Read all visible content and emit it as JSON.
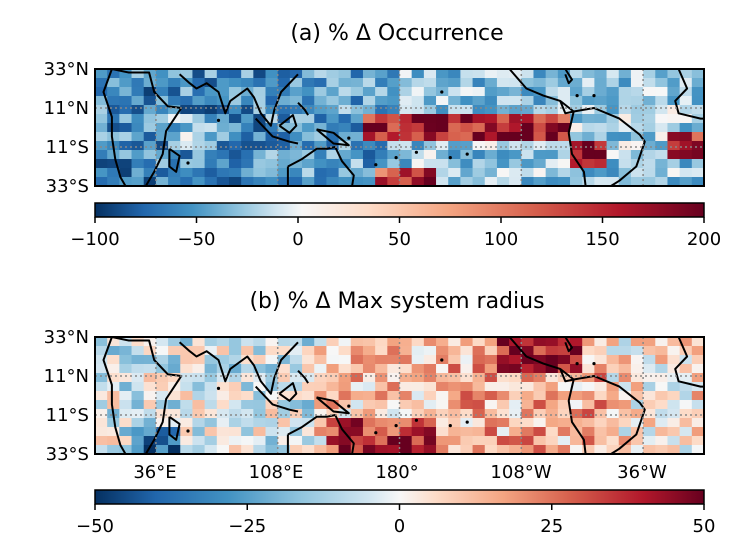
{
  "figure": {
    "panels": [
      {
        "title": "(a) % Δ Occurrence",
        "lat_ticks": [
          "33°N",
          "11°N",
          "11°S",
          "33°S"
        ],
        "lon_ticks": [],
        "colorbar": {
          "ticks": [
            "−100",
            "−50",
            "0",
            "50",
            "100",
            "150",
            "200"
          ]
        }
      },
      {
        "title": "(b) % Δ Max system radius",
        "lat_ticks": [
          "33°N",
          "11°N",
          "11°S",
          "33°S"
        ],
        "lon_ticks": [
          "36°E",
          "108°E",
          "180°",
          "108°W",
          "36°W"
        ],
        "colorbar": {
          "ticks": [
            "−50",
            "−25",
            "0",
            "25",
            "50"
          ]
        }
      }
    ]
  },
  "chart_data": [
    {
      "type": "heatmap",
      "title": "(a) % Δ Occurrence",
      "colormap": "RdBu_r",
      "vmin": -100,
      "vmax": 200,
      "xlim_lon": [
        0,
        360
      ],
      "ylim_lat": [
        -33,
        33
      ],
      "grid": true,
      "regions": [
        {
          "lon": [
            0,
            100
          ],
          "lat": [
            -33,
            33
          ],
          "value": -40
        },
        {
          "lon": [
            100,
            180
          ],
          "lat": [
            -33,
            33
          ],
          "value": -25
        },
        {
          "lon": [
            180,
            290
          ],
          "lat": [
            -33,
            33
          ],
          "value": 5
        },
        {
          "lon": [
            290,
            360
          ],
          "lat": [
            -33,
            33
          ],
          "value": 5
        },
        {
          "lon": [
            155,
            280
          ],
          "lat": [
            -6,
            8
          ],
          "value": 170
        },
        {
          "lon": [
            40,
            70
          ],
          "lat": [
            -12,
            10
          ],
          "value": 0
        },
        {
          "lon": [
            165,
            205
          ],
          "lat": [
            -33,
            -22
          ],
          "value": 160
        },
        {
          "lon": [
            280,
            300
          ],
          "lat": [
            -25,
            -10
          ],
          "value": 190
        },
        {
          "lon": [
            340,
            360
          ],
          "lat": [
            -20,
            -5
          ],
          "value": 170
        }
      ]
    },
    {
      "type": "heatmap",
      "title": "(b) % Δ Max system radius",
      "colormap": "RdBu_r",
      "vmin": -50,
      "vmax": 50,
      "xlim_lon": [
        0,
        360
      ],
      "ylim_lat": [
        -33,
        33
      ],
      "grid": true,
      "regions": [
        {
          "lon": [
            0,
            130
          ],
          "lat": [
            -33,
            33
          ],
          "value": -5
        },
        {
          "lon": [
            20,
            50
          ],
          "lat": [
            -33,
            -20
          ],
          "value": -35
        },
        {
          "lon": [
            130,
            200
          ],
          "lat": [
            -33,
            33
          ],
          "value": 10
        },
        {
          "lon": [
            140,
            210
          ],
          "lat": [
            -33,
            -15
          ],
          "value": 35
        },
        {
          "lon": [
            200,
            300
          ],
          "lat": [
            -33,
            33
          ],
          "value": 15
        },
        {
          "lon": [
            240,
            290
          ],
          "lat": [
            15,
            33
          ],
          "value": 40
        },
        {
          "lon": [
            300,
            360
          ],
          "lat": [
            -33,
            33
          ],
          "value": 5
        }
      ]
    }
  ]
}
